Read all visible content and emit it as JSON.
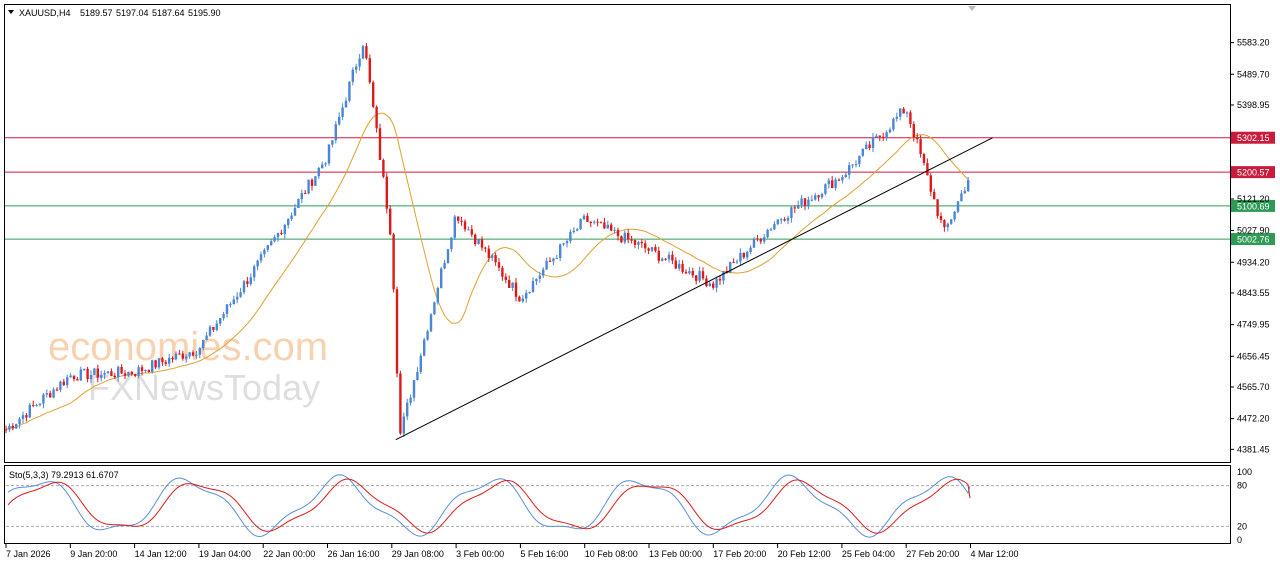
{
  "header": {
    "symbol": "XAUUSD,H4",
    "open": "5189.57",
    "high": "5197.04",
    "low": "5187.64",
    "close": "5195.90"
  },
  "watermark": {
    "line1": "economies.com",
    "line2": "FXNewsToday"
  },
  "colors": {
    "bull": "#4a86d6",
    "bear": "#dd1a1a",
    "ma": "#e0a030",
    "resistance": "#c81c3c",
    "support": "#2e9a56",
    "trendline": "#000000",
    "stoch_main": "#5b8fd6",
    "stoch_signal": "#dd1a1a"
  },
  "chart_data": {
    "type": "candlestick",
    "symbol": "XAUUSD",
    "timeframe": "H4",
    "ylim": [
      4350,
      5650
    ],
    "y_ticks": [
      "5583.20",
      "5489.70",
      "5398.95",
      "5302.15",
      "5200.57",
      "5121.20",
      "5100.69",
      "5027.90",
      "5002.76",
      "4934.20",
      "4843.55",
      "4749.95",
      "4656.45",
      "4565.70",
      "4472.20",
      "4381.45"
    ],
    "x_ticks": [
      "7 Jan 2026",
      "9 Jan 20:00",
      "14 Jan 12:00",
      "19 Jan 04:00",
      "22 Jan 00:00",
      "26 Jan 16:00",
      "29 Jan 08:00",
      "3 Feb 00:00",
      "5 Feb 16:00",
      "10 Feb 08:00",
      "13 Feb 00:00",
      "17 Feb 20:00",
      "20 Feb 12:00",
      "25 Feb 04:00",
      "27 Feb 20:00",
      "4 Mar 12:00"
    ],
    "levels": [
      {
        "value": 5302.15,
        "label": "5302.15",
        "kind": "resistance"
      },
      {
        "value": 5200.57,
        "label": "5200.57",
        "kind": "resistance"
      },
      {
        "value": 5100.69,
        "label": "5100.69",
        "kind": "support"
      },
      {
        "value": 5002.76,
        "label": "5002.76",
        "kind": "support"
      }
    ],
    "trendline": {
      "from": {
        "x": "29 Jan 08:00",
        "y": 4410
      },
      "to": {
        "x": "4 Mar 12:00",
        "y": 5302
      }
    },
    "close_path": [
      [
        "7 Jan 2026",
        4440
      ],
      [
        "9 Jan 20:00",
        4600
      ],
      [
        "14 Jan 12:00",
        4610
      ],
      [
        "19 Jan 04:00",
        4680
      ],
      [
        "22 Jan 00:00",
        4950
      ],
      [
        "26 Jan 16:00",
        5250
      ],
      [
        "28 Jan",
        5590
      ],
      [
        "29 Jan 08:00",
        5000
      ],
      [
        "30 Jan",
        4420
      ],
      [
        "3 Feb 00:00",
        5080
      ],
      [
        "5 Feb 16:00",
        4830
      ],
      [
        "10 Feb 08:00",
        5060
      ],
      [
        "13 Feb 00:00",
        4970
      ],
      [
        "17 Feb 20:00",
        4870
      ],
      [
        "20 Feb 12:00",
        5060
      ],
      [
        "25 Feb 04:00",
        5190
      ],
      [
        "27 Feb 20:00",
        5390
      ],
      [
        "3 Mar",
        5020
      ],
      [
        "4 Mar 12:00",
        5196
      ]
    ],
    "stochastic": {
      "label": "Sto(5,3,3) 79.2913 61.6707",
      "main": 79.2913,
      "signal": 61.6707,
      "ylim": [
        0,
        100
      ],
      "levels": [
        80,
        20
      ],
      "tick_labels": [
        "100",
        "80",
        "20",
        "0"
      ]
    }
  }
}
